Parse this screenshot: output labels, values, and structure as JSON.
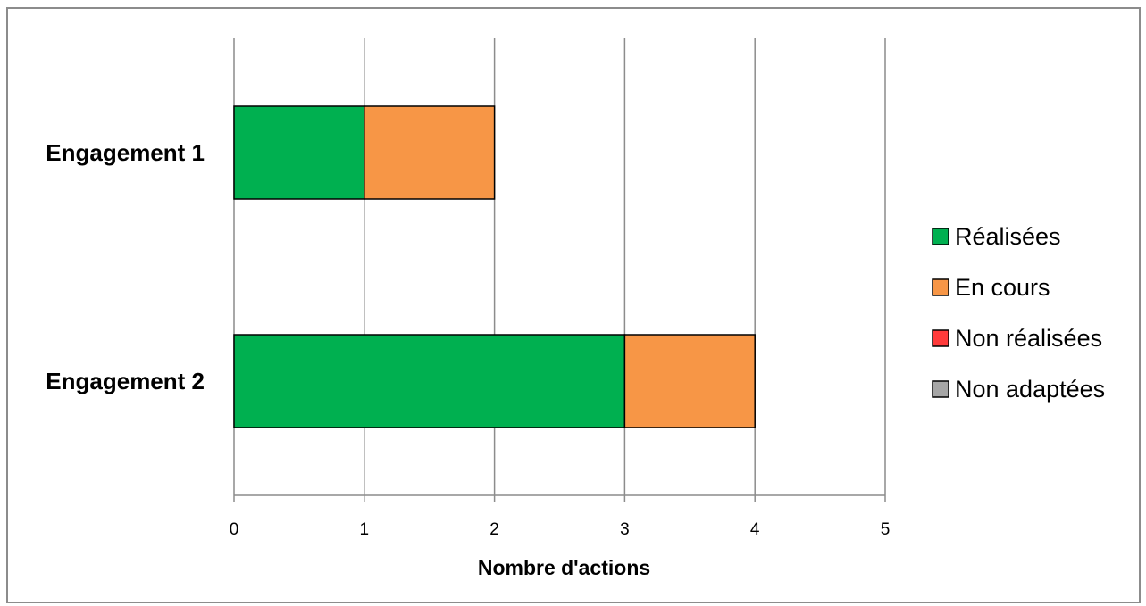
{
  "chart_data": {
    "type": "bar",
    "orientation": "horizontal",
    "stacked": true,
    "categories": [
      "Engagement 1",
      "Engagement 2"
    ],
    "series": [
      {
        "name": "Réalisées",
        "color": "#00b050",
        "values": [
          1,
          3
        ]
      },
      {
        "name": "En cours",
        "color": "#f79646",
        "values": [
          1,
          1
        ]
      },
      {
        "name": "Non réalisées",
        "color": "#ff3b3b",
        "values": [
          0,
          0
        ]
      },
      {
        "name": "Non adaptées",
        "color": "#a6a6a6",
        "values": [
          0,
          0
        ]
      }
    ],
    "xlabel": "Nombre d'actions",
    "ylabel": "",
    "xlim": [
      0,
      5
    ],
    "xticks": [
      "0",
      "1",
      "2",
      "3",
      "4",
      "5"
    ],
    "grid": true,
    "legend_position": "right"
  }
}
